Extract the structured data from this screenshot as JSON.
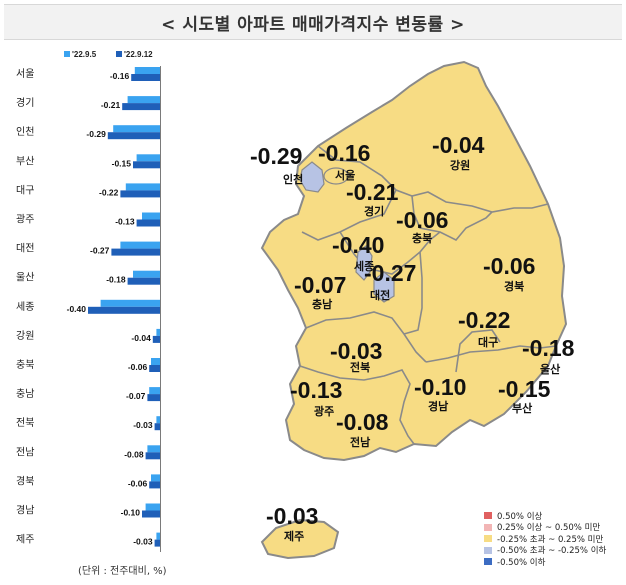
{
  "title": "< 시도별 아파트 매매가격지수 변동률 >",
  "unit_note": "(단위 : 전주대비, %)",
  "chart_data": {
    "type": "bar",
    "orientation": "horizontal",
    "categories": [
      "서울",
      "경기",
      "인천",
      "부산",
      "대구",
      "광주",
      "대전",
      "울산",
      "세종",
      "강원",
      "충북",
      "충남",
      "전북",
      "전남",
      "경북",
      "경남",
      "제주"
    ],
    "series": [
      {
        "name": "'22.9.5",
        "color": "#3aa3f0",
        "values": [
          -0.14,
          -0.18,
          -0.26,
          -0.13,
          -0.19,
          -0.1,
          -0.22,
          -0.15,
          -0.33,
          -0.02,
          -0.05,
          -0.06,
          -0.02,
          -0.07,
          -0.05,
          -0.08,
          -0.02
        ]
      },
      {
        "name": "'22.9.12",
        "color": "#1f5fb8",
        "values": [
          -0.16,
          -0.21,
          -0.29,
          -0.15,
          -0.22,
          -0.13,
          -0.27,
          -0.18,
          -0.4,
          -0.04,
          -0.06,
          -0.07,
          -0.03,
          -0.08,
          -0.06,
          -0.1,
          -0.03
        ]
      }
    ],
    "value_labels": [
      "-0.16",
      "-0.21",
      "-0.29",
      "-0.15",
      "-0.22",
      "-0.13",
      "-0.27",
      "-0.18",
      "-0.40",
      "-0.04",
      "-0.06",
      "-0.07",
      "-0.03",
      "-0.08",
      "-0.06",
      "-0.10",
      "-0.03"
    ],
    "xlim": [
      -0.4,
      0
    ],
    "legend_position": "top",
    "grid": false
  },
  "map": {
    "regions": [
      {
        "name": "서울",
        "value": "-0.16"
      },
      {
        "name": "인천",
        "value": "-0.29"
      },
      {
        "name": "경기",
        "value": "-0.21"
      },
      {
        "name": "강원",
        "value": "-0.04"
      },
      {
        "name": "충북",
        "value": "-0.06"
      },
      {
        "name": "세종",
        "value": "-0.40"
      },
      {
        "name": "대전",
        "value": "-0.27"
      },
      {
        "name": "충남",
        "value": "-0.07"
      },
      {
        "name": "경북",
        "value": "-0.06"
      },
      {
        "name": "대구",
        "value": "-0.22"
      },
      {
        "name": "울산",
        "value": "-0.18"
      },
      {
        "name": "전북",
        "value": "-0.03"
      },
      {
        "name": "광주",
        "value": "-0.13"
      },
      {
        "name": "경남",
        "value": "-0.10"
      },
      {
        "name": "부산",
        "value": "-0.15"
      },
      {
        "name": "전남",
        "value": "-0.08"
      },
      {
        "name": "제주",
        "value": "-0.03"
      }
    ],
    "legend": [
      {
        "label": "0.50% 이상",
        "color": "#e06060"
      },
      {
        "label": "0.25% 이상 ~ 0.50% 미만",
        "color": "#f2b5b5"
      },
      {
        "label": "-0.25% 초과 ~ 0.25% 미만",
        "color": "#f7dc84"
      },
      {
        "label": "-0.50% 초과 ~ -0.25% 이하",
        "color": "#b7c3e4"
      },
      {
        "label": "-0.50% 이하",
        "color": "#3c6cc2"
      }
    ]
  }
}
